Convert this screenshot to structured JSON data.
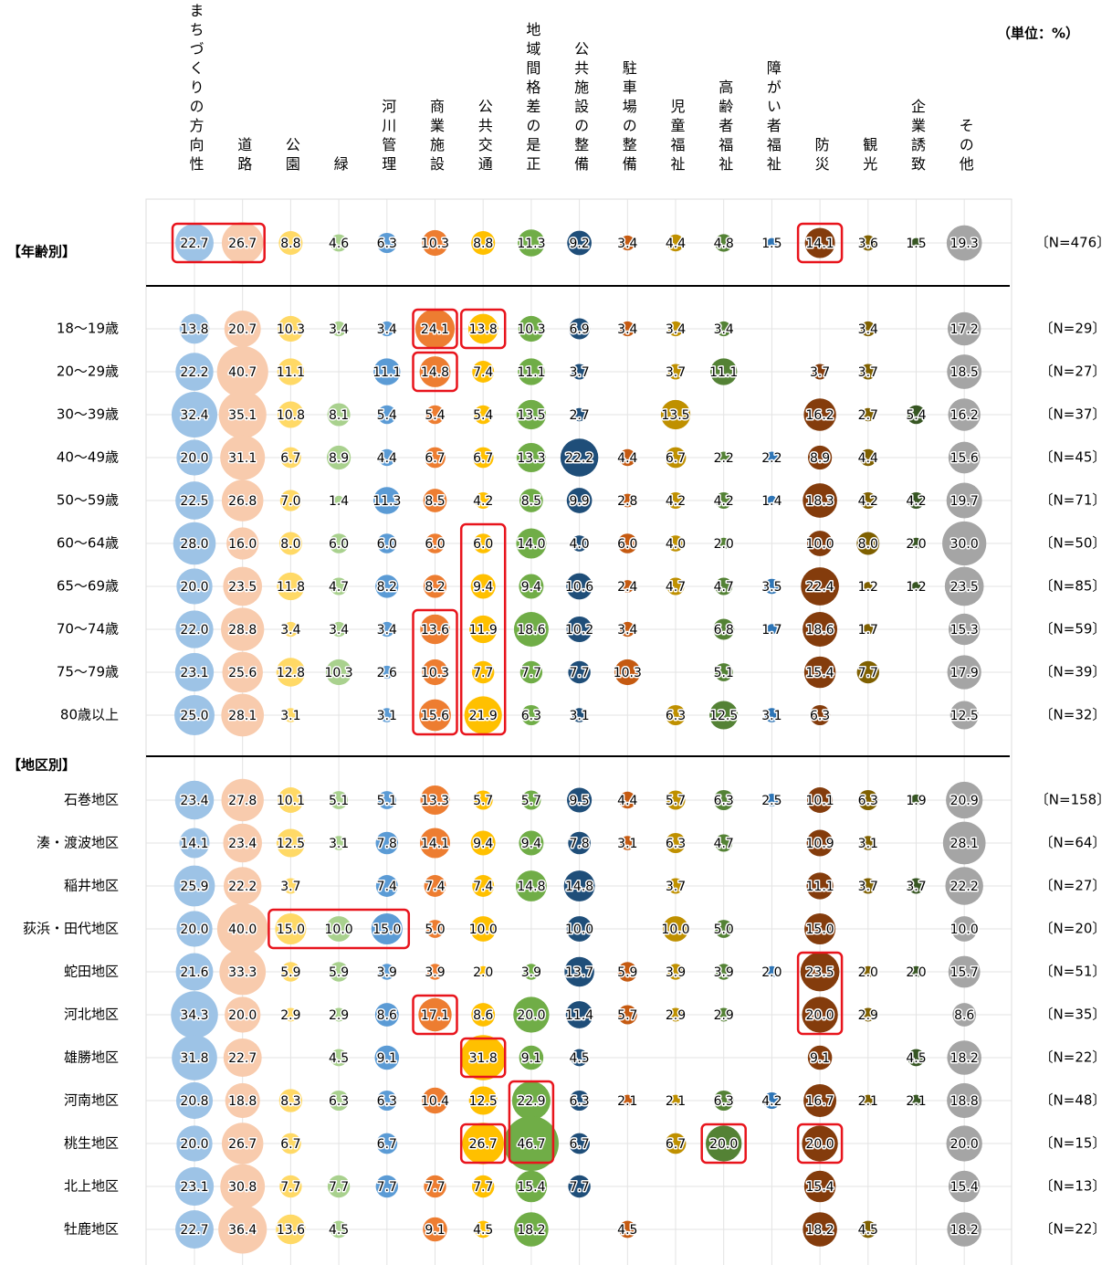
{
  "chart_data": {
    "type": "bubble_table",
    "unit": "（単位：%）",
    "age_section": "【年齢別】",
    "area_section": "【地区別】",
    "columns": [
      "まちづくりの方向性",
      "道路",
      "公園",
      "緑",
      "河川管理",
      "商業施設",
      "公共交通",
      "地域間格差の是正",
      "公共施設の整備",
      "駐車場の整備",
      "児童福祉",
      "高齢者福祉",
      "障がい者福祉",
      "防災",
      "観光",
      "企業誘致",
      "その他"
    ],
    "colors": [
      "#9dc3e6",
      "#f8cbad",
      "#ffd966",
      "#a9d18e",
      "#5b9bd5",
      "#ed7d31",
      "#ffc000",
      "#70ad47",
      "#1f4e79",
      "#c55a11",
      "#bf9000",
      "#548235",
      "#2e75b6",
      "#843c0c",
      "#7f6000",
      "#375623",
      "#a5a5a5"
    ],
    "rows": [
      {
        "label": null,
        "n": "〔N=476〕",
        "values": [
          22.7,
          26.7,
          8.8,
          4.6,
          6.3,
          10.3,
          8.8,
          11.3,
          9.2,
          3.4,
          4.4,
          4.8,
          1.5,
          14.1,
          3.6,
          1.5,
          19.3
        ],
        "value_labels": [
          "22.7",
          "26.7",
          "8.8",
          "4.6",
          "6.3",
          "10.3",
          "8.8",
          "11.3",
          "9.2",
          "3.4",
          "4.4",
          "4.8",
          "1.5",
          "14.1",
          "3.6",
          "1.5",
          "19.3"
        ]
      },
      {
        "label": "18～19歳",
        "n": "〔N=29〕",
        "values": [
          13.8,
          20.7,
          10.3,
          3.4,
          3.4,
          24.1,
          13.8,
          10.3,
          6.9,
          3.4,
          3.4,
          3.4,
          null,
          null,
          3.4,
          null,
          17.2
        ],
        "value_labels": [
          "13.8",
          "20.7",
          "10.3",
          "3.4",
          "3.4",
          "24.1",
          "13.8",
          "10.3",
          "6.9",
          "3.4",
          "3.4",
          "3.4",
          null,
          null,
          "3.4",
          null,
          "17.2"
        ]
      },
      {
        "label": "20～29歳",
        "n": "〔N=27〕",
        "values": [
          22.2,
          40.7,
          11.1,
          null,
          11.1,
          14.8,
          7.4,
          11.1,
          3.7,
          null,
          3.7,
          11.1,
          null,
          3.7,
          3.7,
          null,
          18.5
        ],
        "value_labels": [
          "22.2",
          "40.7",
          "11.1",
          null,
          "11.1",
          "14.8",
          "7.4",
          "11.1",
          "3.7",
          null,
          "3.7",
          "11.1",
          null,
          "3.7",
          "3.7",
          null,
          "18.5"
        ]
      },
      {
        "label": "30～39歳",
        "n": "〔N=37〕",
        "values": [
          32.4,
          35.1,
          10.8,
          8.1,
          5.4,
          5.4,
          5.4,
          13.5,
          2.7,
          null,
          13.5,
          null,
          null,
          16.2,
          2.7,
          5.4,
          16.2
        ],
        "value_labels": [
          "32.4",
          "35.1",
          "10.8",
          "8.1",
          "5.4",
          "5.4",
          "5.4",
          "13.5",
          "2.7",
          null,
          "13.5",
          null,
          null,
          "16.2",
          "2.7",
          "5.4",
          "16.2"
        ]
      },
      {
        "label": "40～49歳",
        "n": "〔N=45〕",
        "values": [
          20,
          31.1,
          6.7,
          8.9,
          4.4,
          6.7,
          6.7,
          13.3,
          22.2,
          4.4,
          6.7,
          2.2,
          2.2,
          8.9,
          4.4,
          null,
          15.6
        ],
        "value_labels": [
          "20.0",
          "31.1",
          "6.7",
          "8.9",
          "4.4",
          "6.7",
          "6.7",
          "13.3",
          "22.2",
          "4.4",
          "6.7",
          "2.2",
          "2.2",
          "8.9",
          "4.4",
          null,
          "15.6"
        ]
      },
      {
        "label": "50～59歳",
        "n": "〔N=71〕",
        "values": [
          22.5,
          26.8,
          7,
          1.4,
          11.3,
          8.5,
          4.2,
          8.5,
          9.9,
          2.8,
          4.2,
          4.2,
          1.4,
          18.3,
          4.2,
          4.2,
          19.7
        ],
        "value_labels": [
          "22.5",
          "26.8",
          "7.0",
          "1.4",
          "11.3",
          "8.5",
          "4.2",
          "8.5",
          "9.9",
          "2.8",
          "4.2",
          "4.2",
          "1.4",
          "18.3",
          "4.2",
          "4.2",
          "19.7"
        ]
      },
      {
        "label": "60～64歳",
        "n": "〔N=50〕",
        "values": [
          28,
          16,
          8,
          6,
          6,
          6,
          6,
          14,
          4,
          6,
          4,
          2,
          null,
          10,
          8,
          2,
          30
        ],
        "value_labels": [
          "28.0",
          "16.0",
          "8.0",
          "6.0",
          "6.0",
          "6.0",
          "6.0",
          "14.0",
          "4.0",
          "6.0",
          "4.0",
          "2.0",
          null,
          "10.0",
          "8.0",
          "2.0",
          "30.0"
        ]
      },
      {
        "label": "65～69歳",
        "n": "〔N=85〕",
        "values": [
          20,
          23.5,
          11.8,
          4.7,
          8.2,
          8.2,
          9.4,
          9.4,
          10.6,
          2.4,
          4.7,
          4.7,
          3.5,
          22.4,
          1.2,
          1.2,
          23.5
        ],
        "value_labels": [
          "20.0",
          "23.5",
          "11.8",
          "4.7",
          "8.2",
          "8.2",
          "9.4",
          "9.4",
          "10.6",
          "2.4",
          "4.7",
          "4.7",
          "3.5",
          "22.4",
          "1.2",
          "1.2",
          "23.5"
        ]
      },
      {
        "label": "70～74歳",
        "n": "〔N=59〕",
        "values": [
          22,
          28.8,
          3.4,
          3.4,
          3.4,
          13.6,
          11.9,
          18.6,
          10.2,
          3.4,
          null,
          6.8,
          1.7,
          18.6,
          1.7,
          null,
          15.3
        ],
        "value_labels": [
          "22.0",
          "28.8",
          "3.4",
          "3.4",
          "3.4",
          "13.6",
          "11.9",
          "18.6",
          "10.2",
          "3.4",
          null,
          "6.8",
          "1.7",
          "18.6",
          "1.7",
          null,
          "15.3"
        ]
      },
      {
        "label": "75～79歳",
        "n": "〔N=39〕",
        "values": [
          23.1,
          25.6,
          12.8,
          10.3,
          2.6,
          10.3,
          7.7,
          7.7,
          7.7,
          10.3,
          null,
          5.1,
          null,
          15.4,
          7.7,
          null,
          17.9
        ],
        "value_labels": [
          "23.1",
          "25.6",
          "12.8",
          "10.3",
          "2.6",
          "10.3",
          "7.7",
          "7.7",
          "7.7",
          "10.3",
          null,
          "5.1",
          null,
          "15.4",
          "7.7",
          null,
          "17.9"
        ]
      },
      {
        "label": "80歳以上",
        "n": "〔N=32〕",
        "values": [
          25,
          28.1,
          3.1,
          null,
          3.1,
          15.6,
          21.9,
          6.3,
          3.1,
          null,
          6.3,
          12.5,
          3.1,
          6.3,
          null,
          null,
          12.5
        ],
        "value_labels": [
          "25.0",
          "28.1",
          "3.1",
          null,
          "3.1",
          "15.6",
          "21.9",
          "6.3",
          "3.1",
          null,
          "6.3",
          "12.5",
          "3.1",
          "6.3",
          null,
          null,
          "12.5"
        ]
      },
      {
        "label": "石巻地区",
        "n": "〔N=158〕",
        "values": [
          23.4,
          27.8,
          10.1,
          5.1,
          5.1,
          13.3,
          5.7,
          5.7,
          9.5,
          4.4,
          5.7,
          6.3,
          2.5,
          10.1,
          6.3,
          1.9,
          20.9
        ],
        "value_labels": [
          "23.4",
          "27.8",
          "10.1",
          "5.1",
          "5.1",
          "13.3",
          "5.7",
          "5.7",
          "9.5",
          "4.4",
          "5.7",
          "6.3",
          "2.5",
          "10.1",
          "6.3",
          "1.9",
          "20.9"
        ]
      },
      {
        "label": "湊・渡波地区",
        "n": "〔N=64〕",
        "values": [
          14.1,
          23.4,
          12.5,
          3.1,
          7.8,
          14.1,
          9.4,
          9.4,
          7.8,
          3.1,
          6.3,
          4.7,
          null,
          10.9,
          3.1,
          null,
          28.1
        ],
        "value_labels": [
          "14.1",
          "23.4",
          "12.5",
          "3.1",
          "7.8",
          "14.1",
          "9.4",
          "9.4",
          "7.8",
          "3.1",
          "6.3",
          "4.7",
          null,
          "10.9",
          "3.1",
          null,
          "28.1"
        ]
      },
      {
        "label": "稲井地区",
        "n": "〔N=27〕",
        "values": [
          25.9,
          22.2,
          3.7,
          null,
          7.4,
          7.4,
          7.4,
          14.8,
          14.8,
          null,
          3.7,
          null,
          null,
          11.1,
          3.7,
          3.7,
          22.2
        ],
        "value_labels": [
          "25.9",
          "22.2",
          "3.7",
          null,
          "7.4",
          "7.4",
          "7.4",
          "14.8",
          "14.8",
          null,
          "3.7",
          null,
          null,
          "11.1",
          "3.7",
          "3.7",
          "22.2"
        ]
      },
      {
        "label": "荻浜・田代地区",
        "n": "〔N=20〕",
        "values": [
          20,
          40,
          15,
          10,
          15,
          5,
          10,
          null,
          10,
          null,
          10,
          5,
          null,
          15,
          null,
          null,
          10
        ],
        "value_labels": [
          "20.0",
          "40.0",
          "15.0",
          "10.0",
          "15.0",
          "5.0",
          "10.0",
          null,
          "10.0",
          null,
          "10.0",
          "5.0",
          null,
          "15.0",
          null,
          null,
          "10.0"
        ]
      },
      {
        "label": "蛇田地区",
        "n": "〔N=51〕",
        "values": [
          21.6,
          33.3,
          5.9,
          5.9,
          3.9,
          3.9,
          2,
          3.9,
          13.7,
          5.9,
          3.9,
          3.9,
          2,
          23.5,
          2,
          2,
          15.7
        ],
        "value_labels": [
          "21.6",
          "33.3",
          "5.9",
          "5.9",
          "3.9",
          "3.9",
          "2.0",
          "3.9",
          "13.7",
          "5.9",
          "3.9",
          "3.9",
          "2.0",
          "23.5",
          "2.0",
          "2.0",
          "15.7"
        ]
      },
      {
        "label": "河北地区",
        "n": "〔N=35〕",
        "values": [
          34.3,
          20,
          2.9,
          2.9,
          8.6,
          17.1,
          8.6,
          20,
          11.4,
          5.7,
          2.9,
          2.9,
          null,
          20,
          2.9,
          null,
          8.6
        ],
        "value_labels": [
          "34.3",
          "20.0",
          "2.9",
          "2.9",
          "8.6",
          "17.1",
          "8.6",
          "20.0",
          "11.4",
          "5.7",
          "2.9",
          "2.9",
          null,
          "20.0",
          "2.9",
          null,
          "8.6"
        ]
      },
      {
        "label": "雄勝地区",
        "n": "〔N=22〕",
        "values": [
          31.8,
          22.7,
          null,
          4.5,
          9.1,
          null,
          31.8,
          9.1,
          4.5,
          null,
          null,
          null,
          null,
          9.1,
          null,
          4.5,
          18.2
        ],
        "value_labels": [
          "31.8",
          "22.7",
          null,
          "4.5",
          "9.1",
          null,
          "31.8",
          "9.1",
          "4.5",
          null,
          null,
          null,
          null,
          "9.1",
          null,
          "4.5",
          "18.2"
        ]
      },
      {
        "label": "河南地区",
        "n": "〔N=48〕",
        "values": [
          20.8,
          18.8,
          8.3,
          6.3,
          6.3,
          10.4,
          12.5,
          22.9,
          6.3,
          2.1,
          2.1,
          6.3,
          4.2,
          16.7,
          2.1,
          2.1,
          18.8
        ],
        "value_labels": [
          "20.8",
          "18.8",
          "8.3",
          "6.3",
          "6.3",
          "10.4",
          "12.5",
          "22.9",
          "6.3",
          "2.1",
          "2.1",
          "6.3",
          "4.2",
          "16.7",
          "2.1",
          "2.1",
          "18.8"
        ]
      },
      {
        "label": "桃生地区",
        "n": "〔N=15〕",
        "values": [
          20,
          26.7,
          6.7,
          null,
          6.7,
          null,
          26.7,
          46.7,
          6.7,
          null,
          6.7,
          20,
          null,
          20,
          null,
          null,
          20
        ],
        "value_labels": [
          "20.0",
          "26.7",
          "6.7",
          null,
          "6.7",
          null,
          "26.7",
          "46.7",
          "6.7",
          null,
          "6.7",
          "20.0",
          null,
          "20.0",
          null,
          null,
          "20.0"
        ]
      },
      {
        "label": "北上地区",
        "n": "〔N=13〕",
        "values": [
          23.1,
          30.8,
          7.7,
          7.7,
          7.7,
          7.7,
          7.7,
          15.4,
          7.7,
          null,
          null,
          null,
          null,
          15.4,
          null,
          null,
          15.4
        ],
        "value_labels": [
          "23.1",
          "30.8",
          "7.7",
          "7.7",
          "7.7",
          "7.7",
          "7.7",
          "15.4",
          "7.7",
          null,
          null,
          null,
          null,
          "15.4",
          null,
          null,
          "15.4"
        ]
      },
      {
        "label": "牡鹿地区",
        "n": "〔N=22〕",
        "values": [
          22.7,
          36.4,
          13.6,
          4.5,
          null,
          9.1,
          4.5,
          18.2,
          null,
          4.5,
          null,
          null,
          null,
          18.2,
          4.5,
          null,
          18.2
        ],
        "value_labels": [
          "22.7",
          "36.4",
          "13.6",
          "4.5",
          null,
          "9.1",
          "4.5",
          "18.2",
          null,
          "4.5",
          null,
          null,
          null,
          "18.2",
          "4.5",
          null,
          "18.2"
        ]
      }
    ]
  }
}
